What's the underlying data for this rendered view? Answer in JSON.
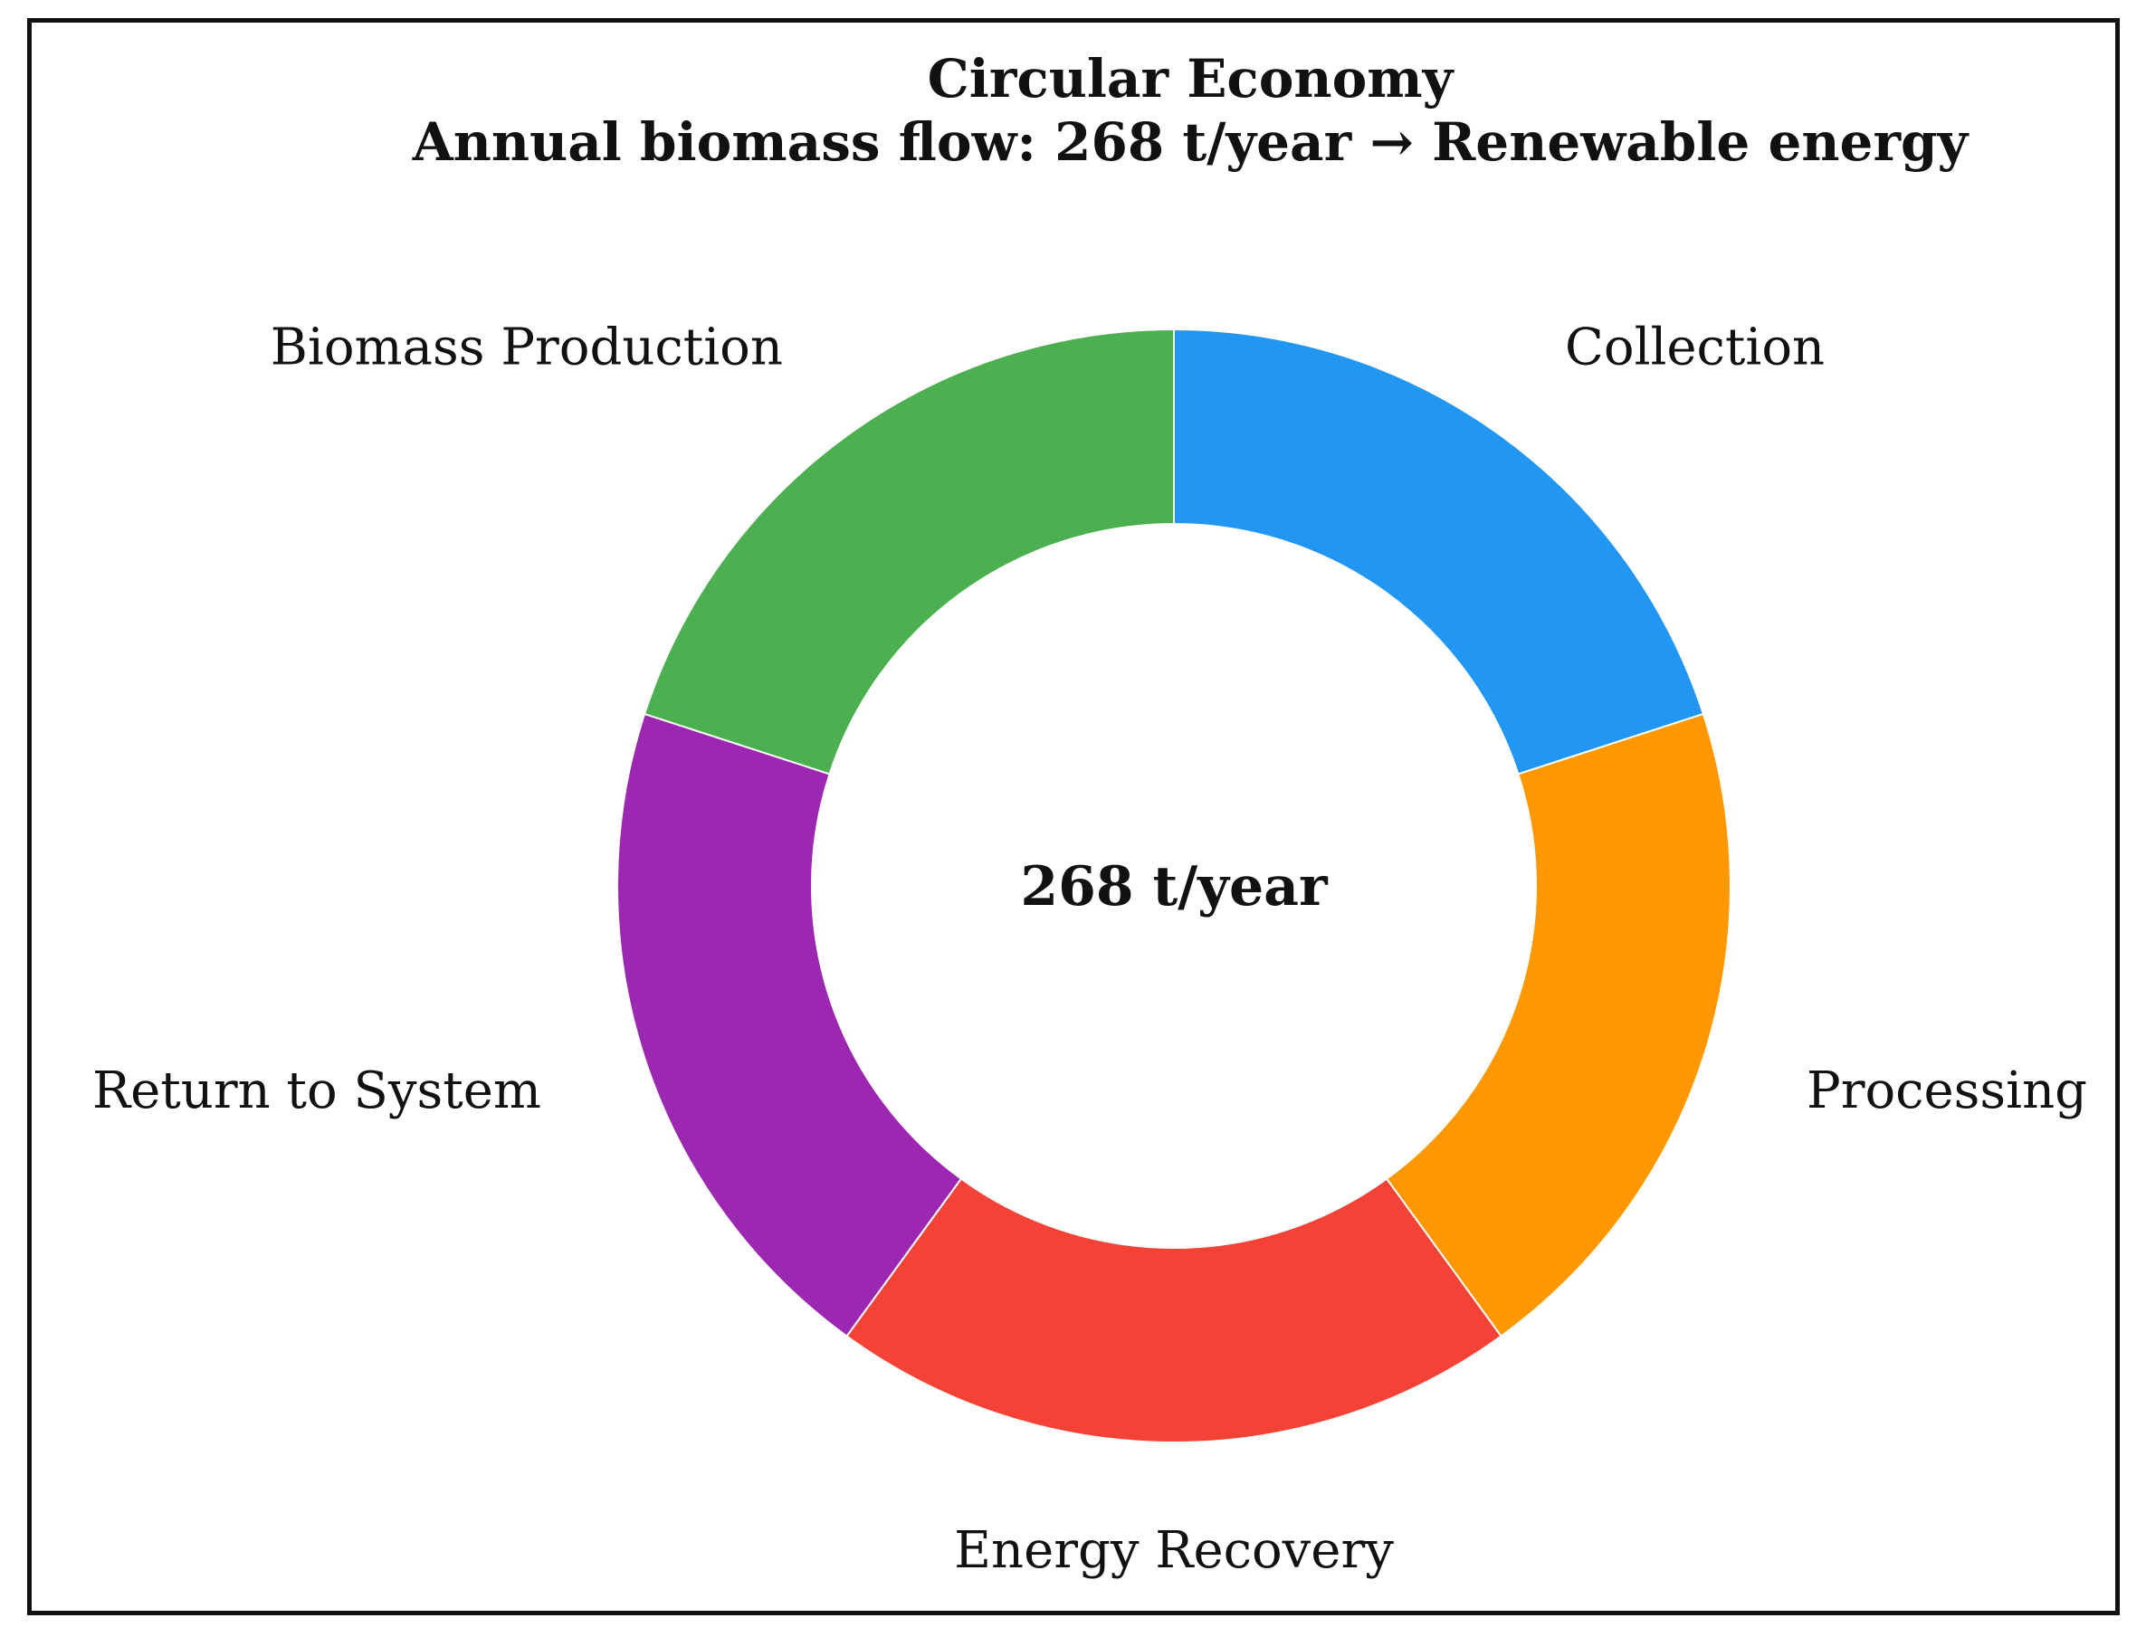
{
  "chart_data": {
    "type": "pie",
    "style": "donut",
    "title": "Circular Economy",
    "subtitle": "Annual biomass flow: 268 t/year → Renewable energy",
    "center_label": "268 t/year",
    "start_angle_deg": 90,
    "direction": "clockwise",
    "legend": "none",
    "slices": [
      {
        "label": "Collection",
        "value": 20,
        "color": "#2196F3"
      },
      {
        "label": "Processing",
        "value": 20,
        "color": "#FF9800"
      },
      {
        "label": "Energy Recovery",
        "value": 20,
        "color": "#F44336"
      },
      {
        "label": "Return to System",
        "value": 20,
        "color": "#9C27B0"
      },
      {
        "label": "Biomass Production",
        "value": 20,
        "color": "#4CAF50"
      }
    ]
  }
}
